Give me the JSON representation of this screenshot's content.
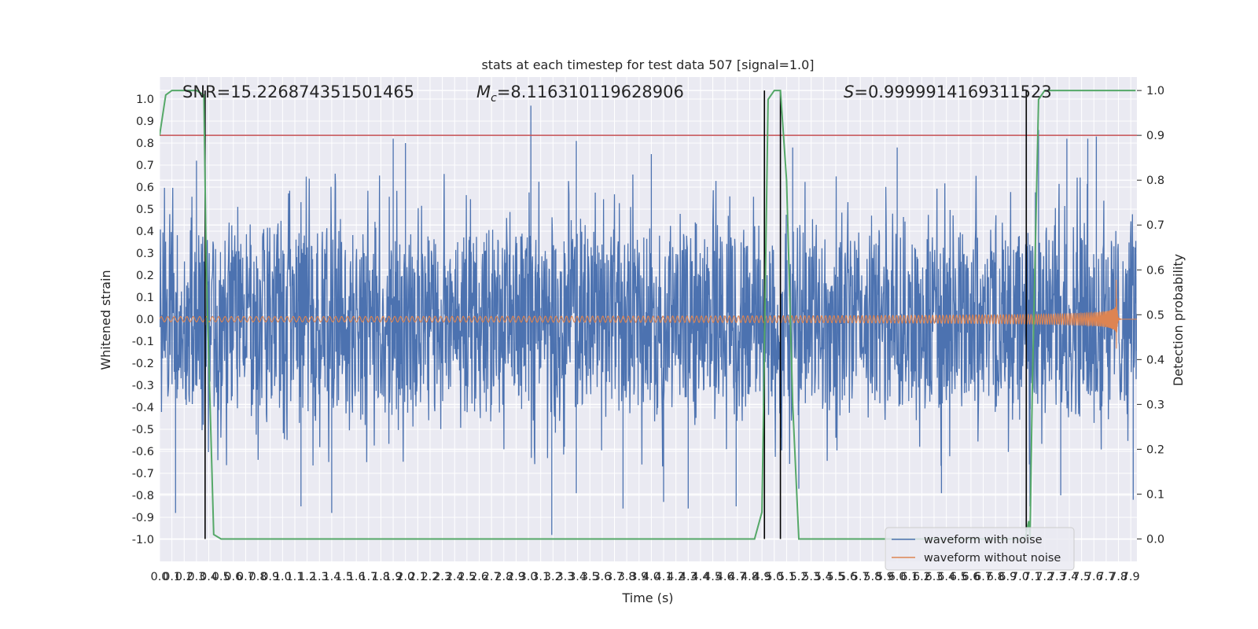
{
  "chart_data": {
    "type": "line",
    "title": "stats at each timestep for test data 507 [signal=1.0]",
    "xlabel": "Time (s)",
    "ylabel": "Whitened strain",
    "y2label": "Detection probability",
    "xlim": [
      0,
      7.95
    ],
    "ylim": [
      -1.1,
      1.1
    ],
    "y2lim": [
      -0.05,
      1.03
    ],
    "xticks": [
      0.0,
      0.1,
      0.2,
      0.3,
      0.4,
      0.5,
      0.6,
      0.7,
      0.8,
      0.9,
      1.0,
      1.1,
      1.2,
      1.3,
      1.4,
      1.5,
      1.6,
      1.7,
      1.8,
      1.9,
      2.0,
      2.1,
      2.2,
      2.3,
      2.4,
      2.5,
      2.6,
      2.7,
      2.8,
      2.9,
      3.0,
      3.1,
      3.2,
      3.3,
      3.4,
      3.5,
      3.6,
      3.7,
      3.8,
      3.9,
      4.0,
      4.1,
      4.2,
      4.3,
      4.4,
      4.5,
      4.6,
      4.7,
      4.8,
      4.9,
      5.0,
      5.1,
      5.2,
      5.3,
      5.4,
      5.5,
      5.6,
      5.7,
      5.8,
      5.9,
      6.0,
      6.1,
      6.2,
      6.3,
      6.4,
      6.5,
      6.6,
      6.7,
      6.8,
      6.9,
      7.0,
      7.1,
      7.2,
      7.3,
      7.4,
      7.5,
      7.6,
      7.7,
      7.8,
      7.9
    ],
    "xticklabels": [
      "0.0",
      "0.1",
      "0.2",
      "0.3",
      "0.4",
      "0.5",
      "0.6",
      "0.7",
      "0.8",
      "0.9",
      "1.0",
      "1.1",
      "1.2",
      "1.3",
      "1.4",
      "1.5",
      "1.6",
      "1.7",
      "1.8",
      "1.9",
      "2.0",
      "2.1",
      "2.2",
      "2.3",
      "2.4",
      "2.5",
      "2.6",
      "2.7",
      "2.8",
      "2.9",
      "3.0",
      "3.1",
      "3.2",
      "3.3",
      "3.4",
      "3.5",
      "3.6",
      "3.7",
      "3.8",
      "3.9",
      "4.0",
      "4.1",
      "4.2",
      "4.3",
      "4.4",
      "4.5",
      "4.6",
      "4.7",
      "4.8",
      "4.9",
      "5.0",
      "5.1",
      "5.2",
      "5.3",
      "5.4",
      "5.5",
      "5.6",
      "5.7",
      "5.8",
      "5.9",
      "6.0",
      "6.1",
      "6.2",
      "6.3",
      "6.4",
      "6.5",
      "6.6",
      "6.7",
      "6.8",
      "6.9",
      "7.0",
      "7.1",
      "7.2",
      "7.3",
      "7.4",
      "7.5",
      "7.6",
      "7.7",
      "7.8",
      "7.9"
    ],
    "yticks": [
      -1.0,
      -0.9,
      -0.8,
      -0.7,
      -0.6,
      -0.5,
      -0.4,
      -0.3,
      -0.2,
      -0.1,
      0.0,
      0.1,
      0.2,
      0.3,
      0.4,
      0.5,
      0.6,
      0.7,
      0.8,
      0.9,
      1.0
    ],
    "yticklabels": [
      "-1.0",
      "-0.9",
      "-0.8",
      "-0.7",
      "-0.6",
      "-0.5",
      "-0.4",
      "-0.3",
      "-0.2",
      "-0.1",
      "0.0",
      "0.1",
      "0.2",
      "0.3",
      "0.4",
      "0.5",
      "0.6",
      "0.7",
      "0.8",
      "0.9",
      "1.0"
    ],
    "y2ticks": [
      0.0,
      0.1,
      0.2,
      0.3,
      0.4,
      0.5,
      0.6,
      0.7,
      0.8,
      0.9,
      1.0
    ],
    "y2ticklabels": [
      "0.0",
      "0.1",
      "0.2",
      "0.3",
      "0.4",
      "0.5",
      "0.6",
      "0.7",
      "0.8",
      "0.9",
      "1.0"
    ],
    "grid": true,
    "legend_position": "lower-right",
    "annotations": {
      "snr": "SNR=15.226874351501465",
      "mc_symbol": "M",
      "mc_sub": "c",
      "mc_value": "=8.116310119628906",
      "s_symbol": "S",
      "s_value": "=0.9999914169311523"
    },
    "threshold": {
      "value": 0.9,
      "axis": "y2",
      "color": "#c44e52"
    },
    "vertical_lines": [
      0.37,
      4.92,
      5.05,
      7.05
    ],
    "series": [
      {
        "name": "waveform with noise",
        "color": "#4c72b0",
        "kind": "noise",
        "band": 0.4,
        "extreme_peaks": [
          [
            0.3,
            0.72
          ],
          [
            1.9,
            0.82
          ],
          [
            2.0,
            0.8
          ],
          [
            3.02,
            0.97
          ],
          [
            3.39,
            0.81
          ],
          [
            4.0,
            0.75
          ],
          [
            5.15,
            0.78
          ],
          [
            6.0,
            0.78
          ],
          [
            7.15,
            0.86
          ],
          [
            7.38,
            0.82
          ],
          [
            7.55,
            0.82
          ],
          [
            7.62,
            0.83
          ],
          [
            0.13,
            -0.88
          ],
          [
            1.15,
            -0.85
          ],
          [
            1.4,
            -0.88
          ],
          [
            3.19,
            -0.98
          ],
          [
            3.39,
            -0.79
          ],
          [
            3.77,
            -0.86
          ],
          [
            4.1,
            -0.83
          ],
          [
            4.3,
            -0.86
          ],
          [
            4.69,
            -0.85
          ],
          [
            5.2,
            -0.77
          ],
          [
            6.36,
            -0.79
          ],
          [
            7.08,
            -0.85
          ],
          [
            7.33,
            -0.8
          ],
          [
            7.92,
            -0.82
          ]
        ]
      },
      {
        "name": "waveform without noise",
        "color": "#dd8452",
        "kind": "chirp",
        "merger_time": 7.78,
        "amplitude_start": 0.012,
        "amplitude_peak": 0.32
      },
      {
        "name": "detection probability",
        "color": "#55a868",
        "axis": "y2",
        "x": [
          0.0,
          0.05,
          0.1,
          0.3,
          0.36,
          0.38,
          0.44,
          0.5,
          0.7,
          0.8,
          1.0,
          2.0,
          3.0,
          4.0,
          4.5,
          4.84,
          4.9,
          4.95,
          5.0,
          5.05,
          5.1,
          5.15,
          5.2,
          5.5,
          6.0,
          6.5,
          7.0,
          7.04,
          7.07,
          7.08,
          7.1,
          7.15,
          7.2,
          7.94
        ],
        "values": [
          0.9,
          0.99,
          1.0,
          1.0,
          0.99,
          0.6,
          0.01,
          0.0,
          0.0,
          0.0,
          0.0,
          0.0,
          0.0,
          0.0,
          0.0,
          0.0,
          0.06,
          0.98,
          1.0,
          1.0,
          0.8,
          0.3,
          0.0,
          0.0,
          0.0,
          0.0,
          0.0,
          0.0,
          0.04,
          0.0,
          0.35,
          0.98,
          1.0,
          1.0
        ]
      }
    ]
  }
}
